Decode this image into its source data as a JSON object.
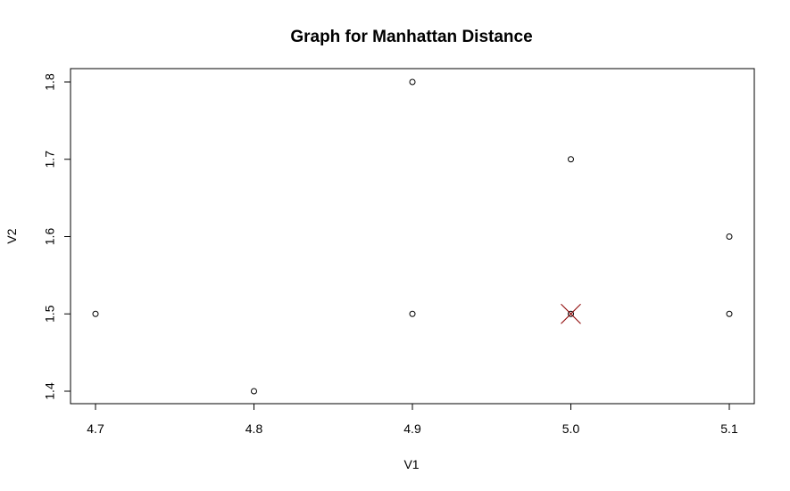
{
  "chart_data": {
    "type": "scatter",
    "title": "Graph for Manhattan Distance",
    "xlabel": "V1",
    "ylabel": "V2",
    "xlim": [
      4.7,
      5.1
    ],
    "ylim": [
      1.4,
      1.8
    ],
    "x_ticks": [
      4.7,
      4.8,
      4.9,
      5.0,
      5.1
    ],
    "x_tick_labels": [
      "4.7",
      "4.8",
      "4.9",
      "5.0",
      "5.1"
    ],
    "y_ticks": [
      1.4,
      1.5,
      1.6,
      1.7,
      1.8
    ],
    "y_tick_labels": [
      "1.4",
      "1.5",
      "1.6",
      "1.7",
      "1.8"
    ],
    "grid": false,
    "legend": "none",
    "points": [
      {
        "x": 4.7,
        "y": 1.5
      },
      {
        "x": 4.8,
        "y": 1.4
      },
      {
        "x": 4.9,
        "y": 1.8
      },
      {
        "x": 4.9,
        "y": 1.5
      },
      {
        "x": 5.0,
        "y": 1.7
      },
      {
        "x": 5.0,
        "y": 1.5
      },
      {
        "x": 5.1,
        "y": 1.6
      },
      {
        "x": 5.1,
        "y": 1.5
      }
    ],
    "marker_point": {
      "x": 5.0,
      "y": 1.5
    },
    "point_color": "#000000",
    "marker_color": "#8b0000"
  }
}
